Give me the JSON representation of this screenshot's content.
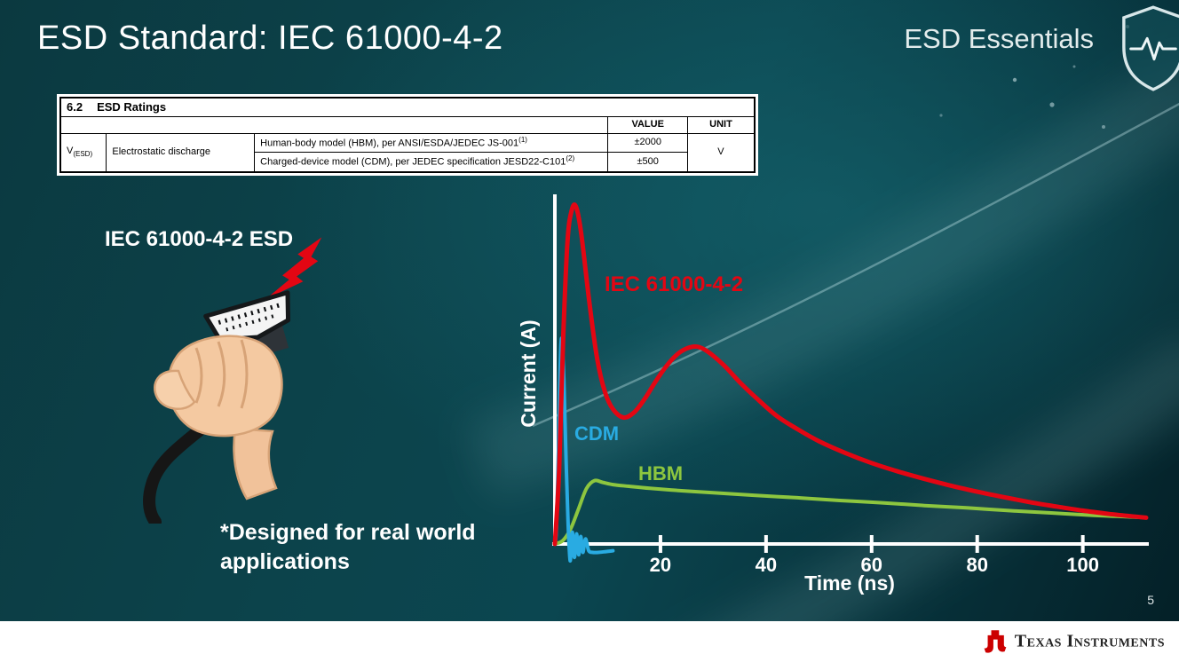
{
  "slide": {
    "title": "ESD Standard: IEC 61000-4-2",
    "series_label": "ESD Essentials",
    "page_number": "5"
  },
  "ratings_table": {
    "section_no": "6.2",
    "section_title": "ESD Ratings",
    "col_value": "VALUE",
    "col_unit": "UNIT",
    "symbol": "V",
    "symbol_sub": "(ESD)",
    "parameter": "Electrostatic discharge",
    "rows": [
      {
        "description": "Human-body model (HBM), per ANSI/ESDA/JEDEC JS-001",
        "sup": "(1)",
        "value": "±2000"
      },
      {
        "description": "Charged-device model (CDM), per JEDEC specification JESD22-C101",
        "sup": "(2)",
        "value": "±500"
      }
    ],
    "unit": "V"
  },
  "illustration": {
    "label": "IEC 61000-4-2 ESD",
    "note": "*Designed for real world\napplications"
  },
  "chart_data": {
    "type": "line",
    "xlabel": "Time (ns)",
    "ylabel": "Current (A)",
    "x_ticks": [
      20,
      40,
      60,
      80,
      100
    ],
    "xlim": [
      0,
      112
    ],
    "ylim": [
      -0.08,
      1.05
    ],
    "grid": false,
    "legend_position": "inline-labels",
    "series": [
      {
        "name": "IEC 61000-4-2",
        "color": "#e30613",
        "x": [
          0,
          0.8,
          1.6,
          2.4,
          3.2,
          4,
          5,
          6.5,
          8,
          9.5,
          11,
          13,
          15,
          17,
          19,
          21,
          23,
          25,
          27,
          29,
          32,
          35,
          38,
          42,
          46,
          50,
          55,
          60,
          65,
          70,
          75,
          80,
          85,
          90,
          95,
          100,
          105,
          110,
          112
        ],
        "y": [
          0,
          0.22,
          0.62,
          0.9,
          0.99,
          1.0,
          0.92,
          0.72,
          0.55,
          0.45,
          0.4,
          0.375,
          0.39,
          0.43,
          0.48,
          0.525,
          0.56,
          0.58,
          0.585,
          0.57,
          0.53,
          0.48,
          0.435,
          0.38,
          0.34,
          0.305,
          0.27,
          0.24,
          0.215,
          0.193,
          0.173,
          0.155,
          0.139,
          0.124,
          0.111,
          0.099,
          0.089,
          0.081,
          0.078
        ]
      },
      {
        "name": "CDM",
        "color": "#29abe2",
        "x": [
          0,
          0.3,
          0.7,
          1.0,
          1.3,
          1.7,
          2.1,
          2.5,
          2.9,
          3.3,
          3.7,
          4.1,
          4.5,
          4.9,
          5.3,
          5.8,
          6.4,
          7.2,
          8.2,
          9.5,
          11
        ],
        "y": [
          0,
          0.05,
          0.3,
          0.52,
          0.61,
          0.49,
          0.26,
          0.06,
          -0.05,
          0.035,
          -0.04,
          0.03,
          -0.032,
          0.022,
          -0.025,
          0.015,
          -0.02,
          -0.025,
          -0.025,
          -0.023,
          -0.02
        ]
      },
      {
        "name": "HBM",
        "color": "#8dc63f",
        "x": [
          0,
          1.5,
          3,
          4.5,
          6,
          7.5,
          9,
          11,
          14,
          18,
          24,
          30,
          38,
          46,
          54,
          62,
          70,
          78,
          86,
          94,
          102,
          108,
          112
        ],
        "y": [
          0,
          0.01,
          0.045,
          0.105,
          0.165,
          0.188,
          0.183,
          0.176,
          0.171,
          0.165,
          0.158,
          0.152,
          0.144,
          0.137,
          0.129,
          0.122,
          0.114,
          0.107,
          0.099,
          0.092,
          0.085,
          0.081,
          0.078
        ]
      }
    ]
  },
  "footer": {
    "brand": "Texas Instruments"
  },
  "colors": {
    "accent_red": "#e30613",
    "cdm_blue": "#29abe2",
    "hbm_green": "#8dc63f",
    "background_teal": "#0b4650",
    "footer_brand_red": "#cc0000"
  }
}
